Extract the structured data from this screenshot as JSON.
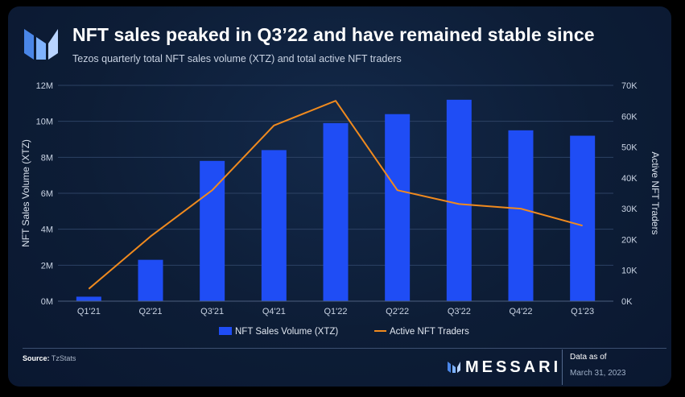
{
  "header": {
    "title": "NFT sales peaked in Q3’22 and have remained stable since",
    "subtitle": "Tezos quarterly total NFT sales volume (XTZ) and total active NFT traders"
  },
  "colors": {
    "bar": "#1f4df5",
    "line": "#f08a1e",
    "grid": "#2d4264",
    "tick_text": "#c9d3e3"
  },
  "icons": {
    "logo": "messari-m-logo-icon",
    "brand": "messari-mark-icon"
  },
  "chart_data": {
    "type": "bar",
    "categories": [
      "Q1'21",
      "Q2'21",
      "Q3'21",
      "Q4'21",
      "Q1'22",
      "Q2'22",
      "Q3'22",
      "Q4'22",
      "Q1'23"
    ],
    "series": [
      {
        "name": "NFT Sales Volume (XTZ)",
        "type": "bar",
        "axis": "left",
        "values": [
          250000,
          2300000,
          7800000,
          8400000,
          9900000,
          10400000,
          11200000,
          9500000,
          9200000
        ]
      },
      {
        "name": "Active NFT Traders",
        "type": "line",
        "axis": "right",
        "values": [
          4000,
          21000,
          36000,
          57000,
          65000,
          36000,
          31500,
          30000,
          24500
        ]
      }
    ],
    "y_left": {
      "label": "NFT Sales Volume (XTZ)",
      "lim": [
        0,
        12000000
      ],
      "ticks": [
        0,
        2000000,
        4000000,
        6000000,
        8000000,
        10000000,
        12000000
      ],
      "tick_labels": [
        "0M",
        "2M",
        "4M",
        "6M",
        "8M",
        "10M",
        "12M"
      ]
    },
    "y_right": {
      "label": "Active NFT Traders",
      "lim": [
        0,
        70000
      ],
      "ticks": [
        0,
        10000,
        20000,
        30000,
        40000,
        50000,
        60000,
        70000
      ],
      "tick_labels": [
        "0K",
        "10K",
        "20K",
        "30K",
        "40K",
        "50K",
        "60K",
        "70K"
      ]
    },
    "grid": true,
    "legend_position": "bottom-center"
  },
  "footer": {
    "source_label": "Source:",
    "source_value": "TzStats",
    "brand": "MESSARI",
    "asof_label": "Data as of",
    "asof_date": "March 31, 2023"
  }
}
